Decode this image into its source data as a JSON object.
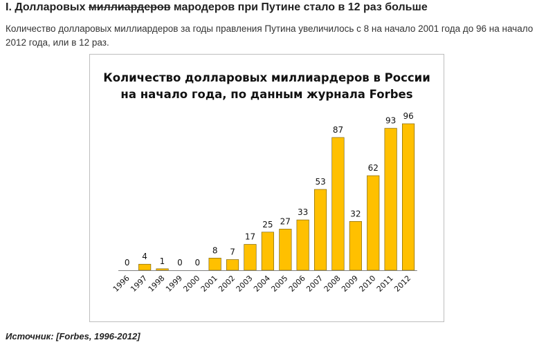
{
  "article": {
    "heading_prefix": "I. Долларовых ",
    "heading_struck": "миллиардеров",
    "heading_suffix": " мародеров при Путине стало в 12 раз больше",
    "lead": "Количество долларовых миллиардеров за годы правления Путина увеличилось с 8 на начало 2001 года до 96 на начало 2012 года, или в 12 раз.",
    "source": "Источник: [Forbes, 1996-2012]"
  },
  "colors": {
    "bar_fill": "#FFC000",
    "bar_stroke": "#6b5500"
  },
  "chart_data": {
    "type": "bar",
    "title_line1": "Количество долларовых миллиардеров в России",
    "title_line2": "на начало года, по данным журнала Forbes",
    "categories": [
      "1996",
      "1997",
      "1998",
      "1999",
      "2000",
      "2001",
      "2002",
      "2003",
      "2004",
      "2005",
      "2006",
      "2007",
      "2008",
      "2009",
      "2010",
      "2011",
      "2012"
    ],
    "values": [
      0,
      4,
      1,
      0,
      0,
      8,
      7,
      17,
      25,
      27,
      33,
      53,
      87,
      32,
      62,
      93,
      96
    ],
    "ylim": [
      0,
      96
    ],
    "grid": false,
    "legend": "none"
  }
}
